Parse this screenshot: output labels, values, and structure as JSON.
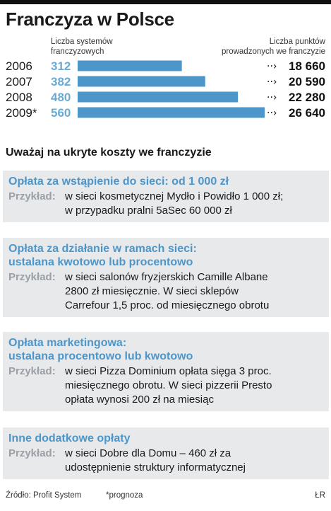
{
  "title": "Franczyza w Polsce",
  "header": {
    "left_line1": "Liczba systemów",
    "left_line2": "franczyzowych",
    "right_line1": "Liczba punktów",
    "right_line2": "prowadzonych we franczyzie"
  },
  "chart_data": {
    "type": "bar",
    "title": "Franczyza w Polsce",
    "categories": [
      "2006",
      "2007",
      "2008",
      "2009*"
    ],
    "series": [
      {
        "name": "Liczba systemów franczyzowych",
        "values": [
          312,
          382,
          480,
          560
        ]
      },
      {
        "name": "Liczba punktów prowadzonych we franczyzie",
        "values": [
          18660,
          20590,
          22280,
          26640
        ]
      }
    ],
    "value_labels": [
      "312",
      "382",
      "480",
      "560"
    ],
    "right_labels": [
      "18 660",
      "20 590",
      "22 280",
      "26 640"
    ],
    "bar_color": "#4d96c9",
    "value_color": "#6aaad3",
    "xlim": [
      0,
      560
    ]
  },
  "subtitle": "Uważaj na ukryte koszty we franczyzie",
  "cards": [
    {
      "title_lines": [
        "Opłata za wstąpienie do sieci: od 1 000 zł"
      ],
      "label": "Przykład:",
      "text_lines": [
        "w sieci kosmetycznej Mydło i Powidło 1 000 zł;",
        "w przypadku pralni 5aSec 60 000 zł"
      ]
    },
    {
      "title_lines": [
        "Opłata za działanie w ramach sieci:",
        "ustalana kwotowo lub procentowo"
      ],
      "label": "Przykład:",
      "text_lines": [
        "w sieci salonów fryzjerskich Camille Albane",
        "2800 zł miesięcznie. W sieci sklepów",
        "Carrefour 1,5 proc. od miesięcznego obrotu"
      ]
    },
    {
      "title_lines": [
        "Opłata marketingowa:",
        "ustalana procentowo lub kwotowo"
      ],
      "label": "Przykład:",
      "text_lines": [
        "w sieci Pizza Dominium opłata sięga 3 proc.",
        "miesięcznego obrotu.  W sieci pizzerii Presto",
        "opłata wynosi 200 zł na miesiąc"
      ]
    },
    {
      "title_lines": [
        "Inne dodatkowe opłaty"
      ],
      "label": "Przykład:",
      "text_lines": [
        "w sieci Dobre dla Domu – 460 zł za",
        "udostępnienie struktury informatycznej"
      ]
    }
  ],
  "footer": {
    "source": "Źródło: Profit System",
    "note": "*prognoza",
    "author": "ŁR"
  },
  "colors": {
    "card_bg": "#e8e9ea",
    "card_title": "#4d96c9",
    "label_grey": "#9aa0a6"
  }
}
